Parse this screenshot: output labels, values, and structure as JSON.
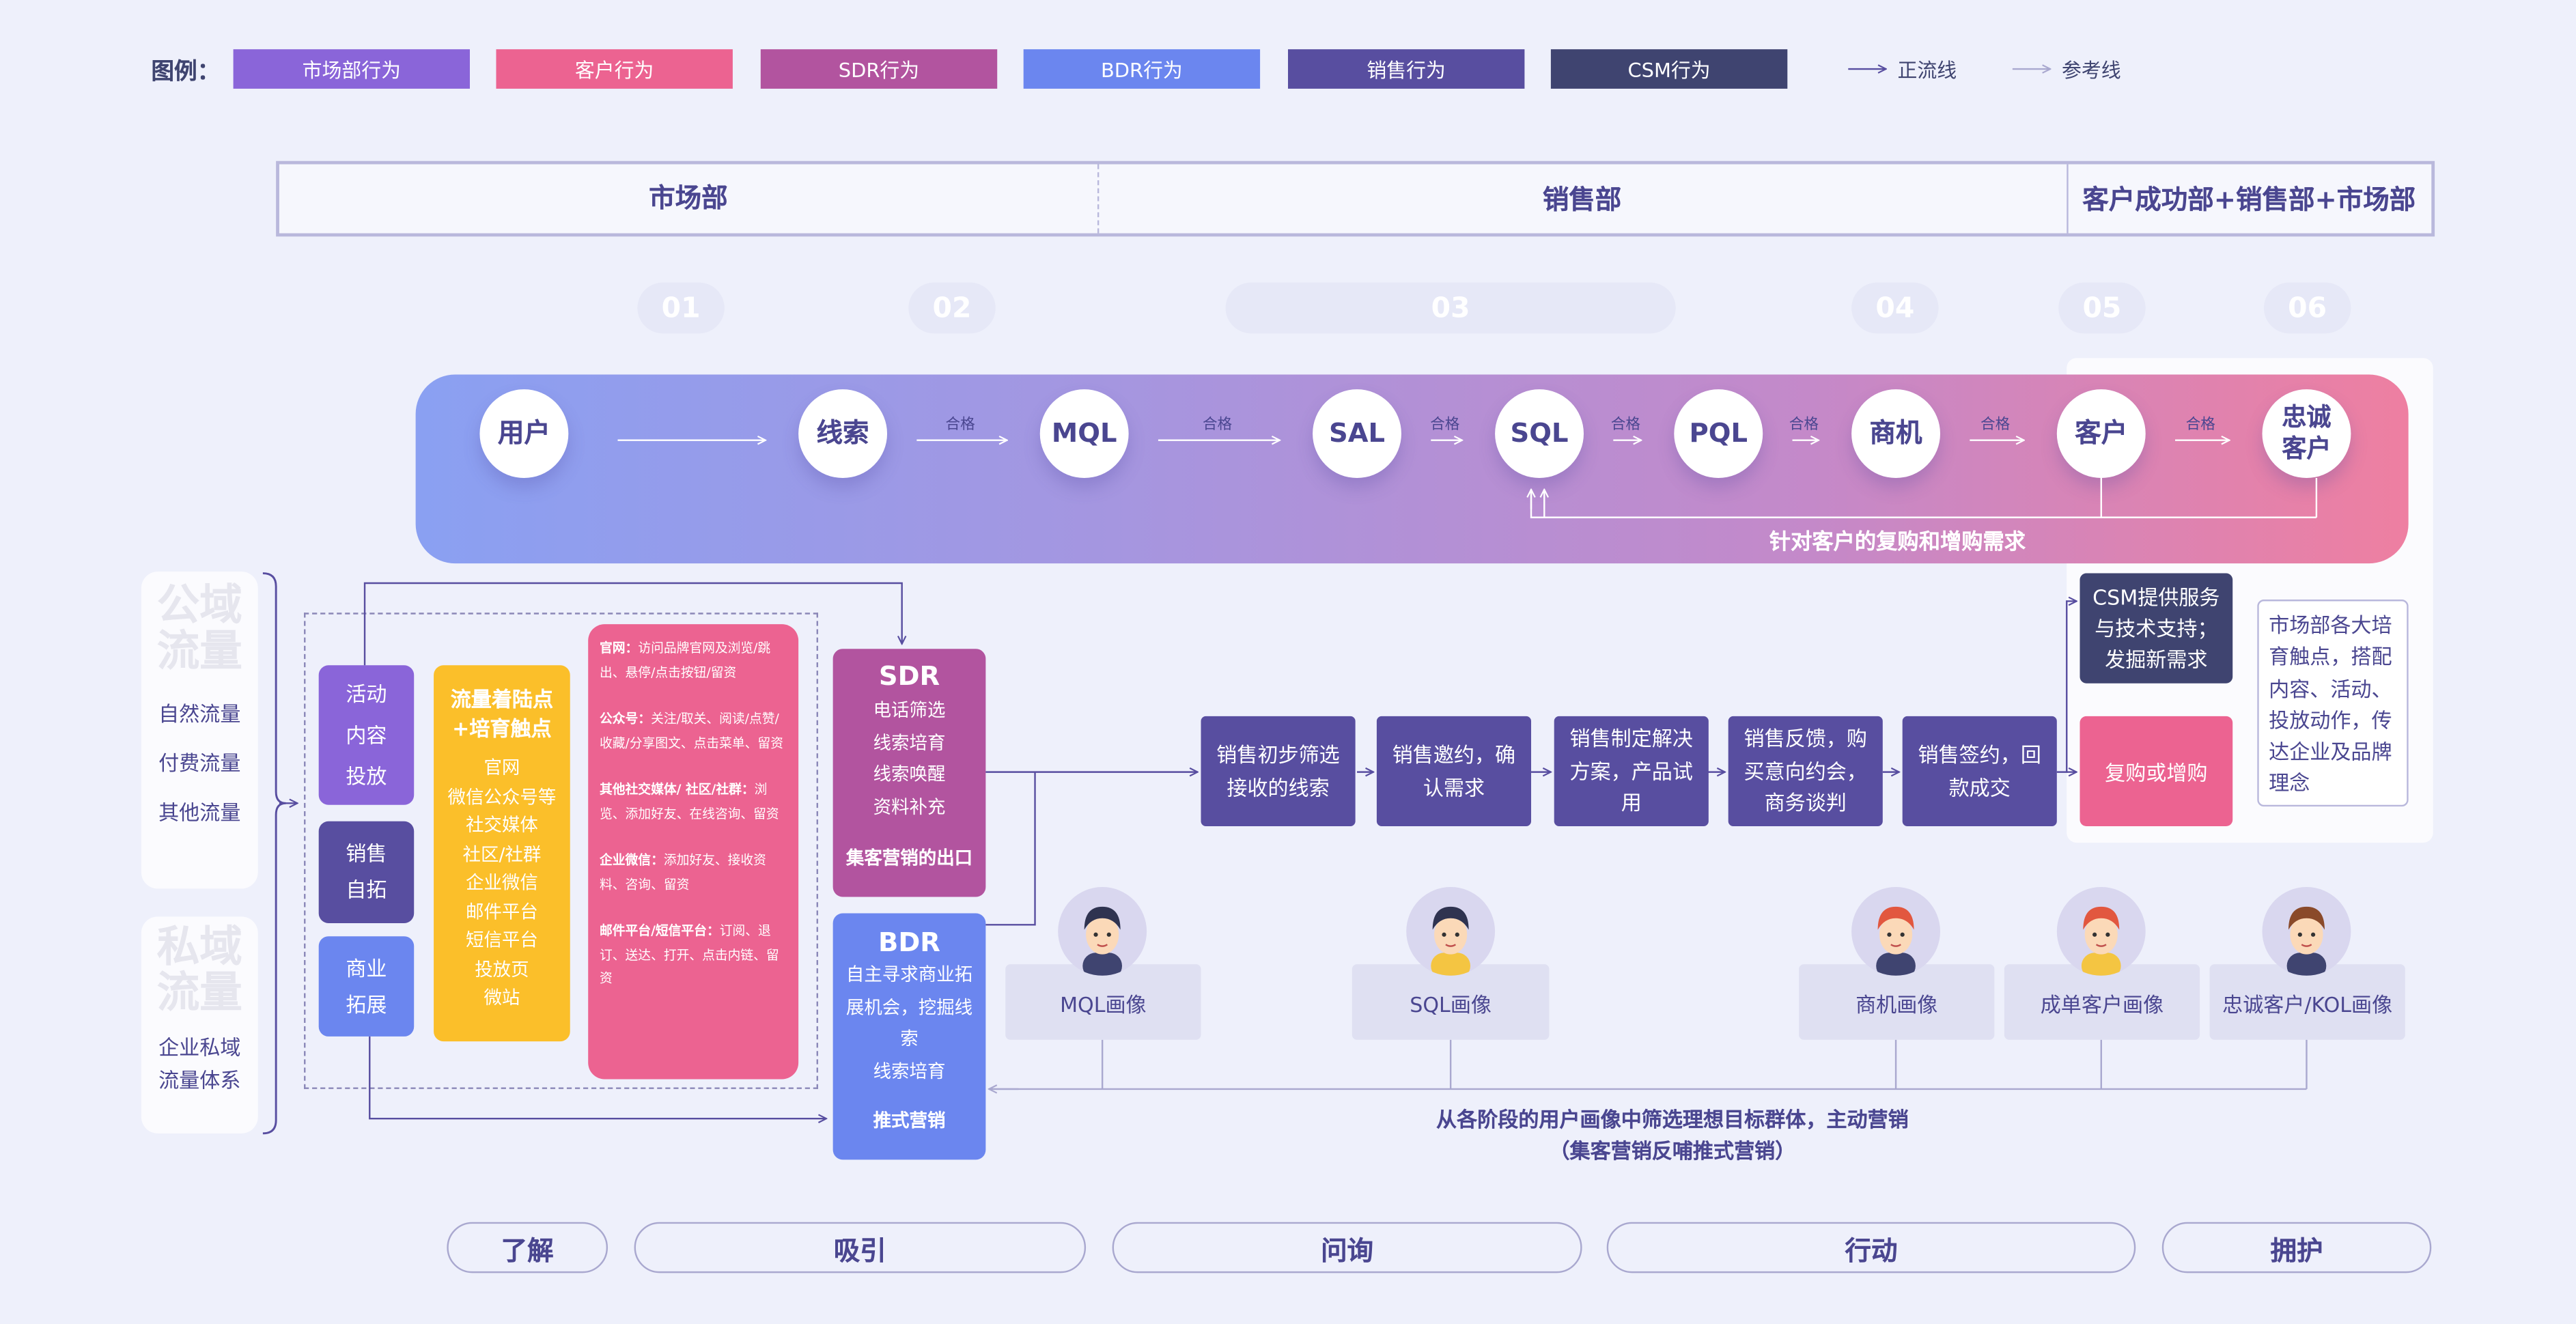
{
  "legend": {
    "title": "图例：",
    "items": [
      {
        "label": "市场部行为",
        "color": "#8a65d9"
      },
      {
        "label": "客户行为",
        "color": "#ec6391"
      },
      {
        "label": "SDR行为",
        "color": "#b2549f"
      },
      {
        "label": "BDR行为",
        "color": "#6b86ef"
      },
      {
        "label": "销售行为",
        "color": "#584ea0"
      },
      {
        "label": "CSM行为",
        "color": "#3f4470"
      }
    ],
    "main_line": "正流线",
    "ref_line": "参考线"
  },
  "departments": [
    "市场部",
    "销售部",
    "客户成功部+销售部+市场部"
  ],
  "steps": [
    "01",
    "02",
    "03",
    "04",
    "05",
    "06"
  ],
  "flow": {
    "nodes": [
      "用户",
      "线索",
      "MQL",
      "SAL",
      "SQL",
      "PQL",
      "商机",
      "客户",
      "忠诚客户"
    ],
    "edge_label": "合格",
    "feedback": "针对客户的复购和增购需求"
  },
  "traffic": {
    "public_watermark": "公域流量",
    "public": [
      "自然流量",
      "付费流量",
      "其他流量"
    ],
    "private_watermark": "私域流量",
    "private": [
      "企业私域",
      "流量体系"
    ]
  },
  "channels": [
    {
      "label": "活动内容投放",
      "lines": [
        "活动",
        "内容",
        "投放"
      ],
      "color": "#8a65d9"
    },
    {
      "lines": [
        "销售",
        "自拓"
      ],
      "color": "#584ea0"
    },
    {
      "lines": [
        "商业",
        "拓展"
      ],
      "color": "#6b86ef"
    }
  ],
  "touchpoints": {
    "title": "流量着陆点+培育触点",
    "items": [
      "官网",
      "微信公众号等",
      "社交媒体",
      "社区/社群",
      "企业微信",
      "邮件平台",
      "短信平台",
      "投放页",
      "微站"
    ]
  },
  "behaviors": [
    {
      "title": "官网：",
      "body": "访问品牌官网及浏览/跳出、悬停/点击按钮/留资"
    },
    {
      "title": "公众号：",
      "body": "关注/取关、阅读/点赞/收藏/分享图文、点击菜单、留资"
    },
    {
      "title": "其他社交媒体/ 社区/社群：",
      "body": "浏览、添加好友、在线咨询、留资"
    },
    {
      "title": "企业微信：",
      "body": "添加好友、接收资料、咨询、留资"
    },
    {
      "title": "邮件平台/短信平台：",
      "body": "订阅、退订、送达、打开、点击内链、留资"
    }
  ],
  "sdr": {
    "title": "SDR",
    "items": [
      "电话筛选",
      "线索培育",
      "线索唤醒",
      "资料补充"
    ],
    "footer": "集客营销的出口"
  },
  "bdr": {
    "title": "BDR",
    "items": [
      "自主寻求商业拓展机会，挖掘线索",
      "线索培育"
    ],
    "footer": "推式营销"
  },
  "sales_steps": [
    "销售初步筛选接收的线索",
    "销售邀约，确认需求",
    "销售制定解决方案，产品试用",
    "销售反馈，购买意向约会，商务谈判",
    "销售签约，回款成交"
  ],
  "csm": "CSM提供服务与技术支持；发掘新需求",
  "repurchase": "复购或增购",
  "note": "市场部各大培育触点，搭配内容、活动、投放动作，传达企业及品牌理念",
  "personas": [
    "MQL画像",
    "SQL画像",
    "商机画像",
    "成单客户画像",
    "忠诚客户/KOL画像"
  ],
  "persona_note": [
    "从各阶段的用户画像中筛选理想目标群体，主动营销",
    "（集客营销反哺推式营销）"
  ],
  "stages": [
    "了解",
    "吸引",
    "问询",
    "行动",
    "拥护"
  ]
}
